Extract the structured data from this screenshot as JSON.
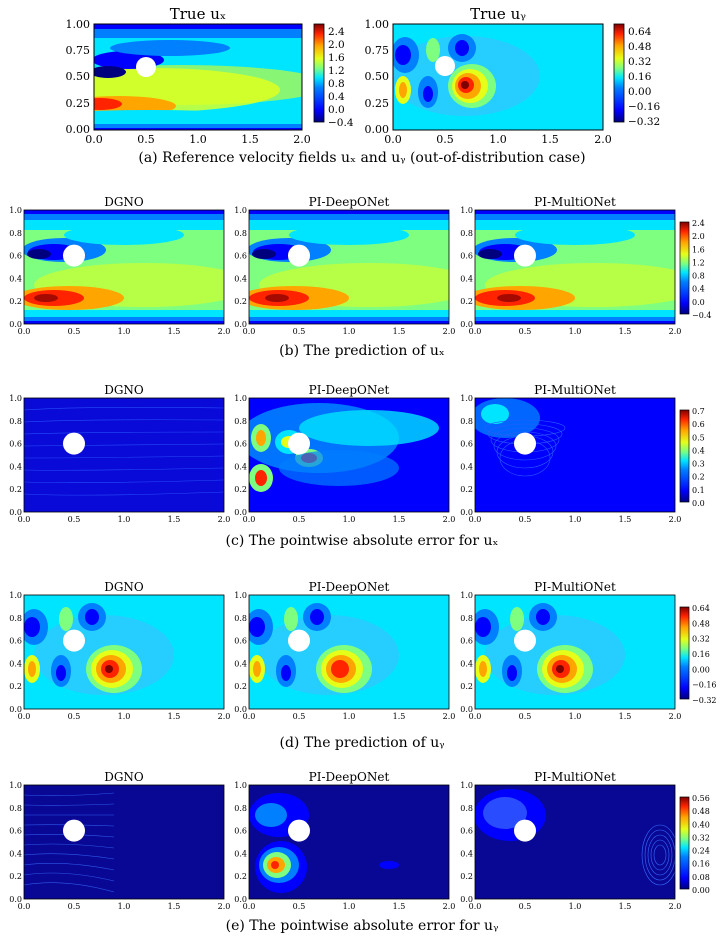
{
  "captions": {
    "a": "(a) Reference velocity fields uₓ and uᵧ (out-of-distribution case)",
    "b": "(b) The prediction of uₓ",
    "c": "(c) The pointwise absolute error for uₓ",
    "d": "(d) The prediction of uᵧ",
    "e": "(e) The pointwise absolute error for uᵧ"
  },
  "panel_titles": {
    "true_ux": "True uₓ",
    "true_uy": "True uᵧ",
    "dgno": "DGNO",
    "deeponet": "PI-DeepONet",
    "multionet": "PI-MultiONet"
  },
  "axes": {
    "row1_x_ticks": [
      "0.0",
      "0.5",
      "1.0",
      "1.5",
      "2.0"
    ],
    "row1_y_ticks": [
      "0.00",
      "0.25",
      "0.50",
      "0.75",
      "1.00"
    ],
    "small_x_ticks": [
      "0.0",
      "0.5",
      "1.0",
      "1.5",
      "2.0"
    ],
    "small_y_ticks": [
      "0.0",
      "0.2",
      "0.4",
      "0.6",
      "0.8",
      "1.0"
    ]
  },
  "colorbars": {
    "true_ux": [
      "2.4",
      "2.0",
      "1.6",
      "1.2",
      "0.8",
      "0.4",
      "0.0",
      "−0.4"
    ],
    "true_uy": [
      "0.64",
      "0.48",
      "0.32",
      "0.16",
      "0.00",
      "−0.16",
      "−0.32"
    ],
    "pred_ux": [
      "2.4",
      "2.0",
      "1.6",
      "1.2",
      "0.8",
      "0.4",
      "0.0",
      "−0.4"
    ],
    "err_ux": [
      "0.7",
      "0.6",
      "0.5",
      "0.4",
      "0.3",
      "0.2",
      "0.1",
      "0.0"
    ],
    "pred_uy": [
      "0.64",
      "0.48",
      "0.32",
      "0.16",
      "0.00",
      "−0.16",
      "−0.32"
    ],
    "err_uy": [
      "0.56",
      "0.48",
      "0.40",
      "0.32",
      "0.24",
      "0.16",
      "0.08",
      "0.00"
    ]
  },
  "colormap": [
    "#00007f",
    "#0000ff",
    "#007fff",
    "#00e5ff",
    "#7fff7f",
    "#e5ff19",
    "#ffa500",
    "#ff2300",
    "#7f0000"
  ]
}
